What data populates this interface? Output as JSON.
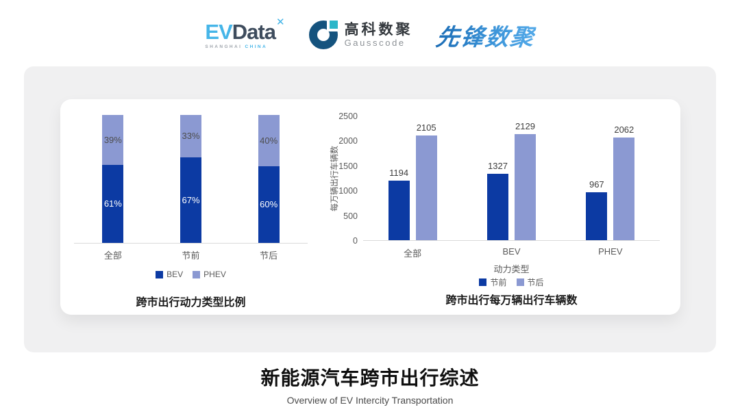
{
  "header": {
    "logos": {
      "evdata": {
        "ev": "EV",
        "data": "Data",
        "mark": "✕",
        "sub_left": "SHANGHAI",
        "sub_right": "CHINA"
      },
      "gausscode": {
        "cn": "高科数聚",
        "en": "Gausscode"
      },
      "xianfeng": {
        "text": "先锋数聚"
      }
    }
  },
  "palette": {
    "dark_blue": "#0c3aa3",
    "light_blue": "#8b99d2",
    "axis_text": "#595959",
    "value_text": "#3d3d3d",
    "baseline": "#d9d9d9"
  },
  "chart_data": [
    {
      "type": "bar",
      "variant": "stacked-100",
      "title": "跨市出行动力类型比例",
      "categories": [
        "全部",
        "节前",
        "节后"
      ],
      "series": [
        {
          "name": "BEV",
          "values": [
            61,
            67,
            60
          ],
          "color": "#0c3aa3",
          "label_color": "#ffffff"
        },
        {
          "name": "PHEV",
          "values": [
            39,
            33,
            40
          ],
          "color": "#8b99d2",
          "label_color": "#4d4d4d"
        }
      ],
      "value_suffix": "%",
      "xlabel": "",
      "ylabel": "",
      "ylim": [
        0,
        100
      ],
      "grid": false,
      "legend_position": "bottom",
      "legend": [
        "BEV",
        "PHEV"
      ]
    },
    {
      "type": "bar",
      "variant": "grouped",
      "title": "跨市出行每万辆出行车辆数",
      "categories": [
        "全部",
        "BEV",
        "PHEV"
      ],
      "series": [
        {
          "name": "节前",
          "values": [
            1194,
            1327,
            967
          ],
          "color": "#0c3aa3"
        },
        {
          "name": "节后",
          "values": [
            2105,
            2129,
            2062
          ],
          "color": "#8b99d2"
        }
      ],
      "xlabel": "动力类型",
      "ylabel": "每万辆出行车辆数",
      "ylim": [
        0,
        2500
      ],
      "yticks": [
        0,
        500,
        1000,
        1500,
        2000,
        2500
      ],
      "grid": false,
      "legend_position": "bottom",
      "legend": [
        "节前",
        "节后"
      ]
    }
  ],
  "footer": {
    "title": "新能源汽车跨市出行综述",
    "subtitle": "Overview of EV Intercity Transportation"
  }
}
